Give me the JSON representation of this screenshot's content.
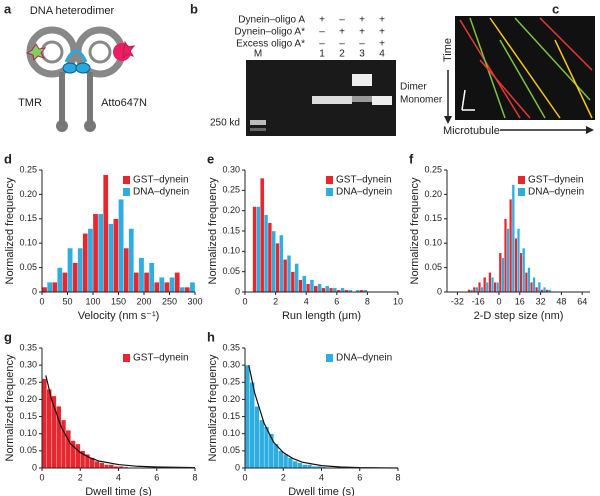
{
  "figure": {
    "a": {
      "letter": "a",
      "title": "DNA heterodimer",
      "left_label": "TMR",
      "right_label": "Atto647N"
    },
    "b": {
      "letter": "b",
      "rows": [
        {
          "label": "Dynein–oligo A",
          "marks": [
            "+",
            "–",
            "+",
            "+"
          ]
        },
        {
          "label": "Dynein–oligo A*",
          "marks": [
            "–",
            "+",
            "+",
            "+"
          ]
        },
        {
          "label": "Excess oligo A*",
          "marks": [
            "–",
            "–",
            "–",
            "+"
          ]
        }
      ],
      "lanes": [
        "M",
        "1",
        "2",
        "3",
        "4"
      ],
      "marker": "250 kd",
      "dimer": "Dimer",
      "monomer": "Monomer"
    },
    "c": {
      "letter": "c",
      "y_label": "Time",
      "x_label": "Microtubule"
    }
  },
  "chart_data": [
    {
      "type": "histogram",
      "panel": "d",
      "xlabel": "Velocity (nm s⁻¹)",
      "ylabel": "Normalized frequency",
      "bins": [
        0,
        20,
        40,
        60,
        80,
        100,
        120,
        140,
        160,
        180,
        200,
        220,
        240,
        260,
        280,
        300
      ],
      "series": [
        {
          "name": "GST–dynein",
          "color": "#e8262d",
          "values": [
            0.01,
            0.02,
            0.04,
            0.06,
            0.12,
            0.16,
            0.24,
            0.15,
            0.09,
            0.04,
            0.04,
            0.02,
            0.02,
            0.04,
            0.01
          ]
        },
        {
          "name": "DNA–dynein",
          "color": "#2eaee0",
          "values": [
            0.02,
            0.05,
            0.09,
            0.09,
            0.13,
            0.16,
            0.14,
            0.19,
            0.13,
            0.07,
            0.06,
            0.03,
            0.03,
            0.01,
            0.02
          ]
        }
      ],
      "xlim": [
        0,
        300
      ],
      "xticks": [
        0,
        50,
        100,
        150,
        200,
        250,
        300
      ],
      "ylim": [
        0,
        0.25
      ],
      "yticks": [
        0,
        0.05,
        {
          "value": 0.1,
          "label": "0.10"
        },
        0.15,
        {
          "value": 0.2,
          "label": "0.20"
        },
        0.25
      ],
      "legend": "upper right"
    },
    {
      "type": "histogram",
      "panel": "e",
      "xlabel": "Run length (μm)",
      "ylabel": "Normalized frequency",
      "bins": [
        0.5,
        1,
        1.5,
        2,
        2.5,
        3,
        3.5,
        4,
        4.5,
        5,
        5.5,
        6,
        6.5,
        7,
        7.5,
        8
      ],
      "series": [
        {
          "name": "GST–dynein",
          "color": "#e8262d",
          "values": [
            0.21,
            0.28,
            0.17,
            0.12,
            0.08,
            0.05,
            0.03,
            0.02,
            0.015,
            0.01,
            0.01,
            0.005,
            0.005,
            0,
            0.005
          ]
        },
        {
          "name": "DNA–dynein",
          "color": "#2eaee0",
          "values": [
            0.21,
            0.19,
            0.15,
            0.14,
            0.09,
            0.07,
            0.04,
            0.03,
            0.02,
            0.015,
            0.01,
            0.01,
            0.005,
            0.005,
            0.005
          ]
        }
      ],
      "xlim": [
        0,
        10
      ],
      "xticks": [
        0,
        2,
        4,
        6,
        8,
        10
      ],
      "ylim": [
        0,
        0.3
      ],
      "yticks": [
        0,
        0.05,
        {
          "value": 0.1,
          "label": "0.10"
        },
        0.15,
        {
          "value": 0.2,
          "label": "0.20"
        },
        0.25,
        {
          "value": 0.3,
          "label": "0.30"
        }
      ],
      "legend": "upper right"
    },
    {
      "type": "histogram",
      "panel": "f",
      "xlabel": "2-D step size (nm)",
      "ylabel": "Normalized frequency",
      "bins": [
        -24,
        -20,
        -16,
        -12,
        -8,
        -4,
        0,
        4,
        8,
        12,
        16,
        20,
        24,
        28,
        32,
        36,
        40
      ],
      "series": [
        {
          "name": "GST–dynein",
          "color": "#e8262d",
          "values": [
            0.005,
            0.01,
            0.02,
            0.03,
            0.04,
            0.02,
            0.08,
            0.15,
            0.19,
            0.11,
            0.08,
            0.04,
            0.02,
            0.01,
            0.005,
            0.005
          ]
        },
        {
          "name": "DNA–dynein",
          "color": "#2eaee0",
          "values": [
            0.005,
            0.01,
            0.01,
            0.02,
            0.03,
            0.02,
            0.07,
            0.13,
            0.22,
            0.13,
            0.09,
            0.05,
            0.03,
            0.02,
            0.01,
            0.005
          ]
        }
      ],
      "xlim": [
        -40,
        70
      ],
      "xticks": [
        -32,
        -16,
        0,
        16,
        32,
        48,
        64
      ],
      "ylim": [
        0,
        0.25
      ],
      "yticks": [
        0,
        0.05,
        {
          "value": 0.1,
          "label": "0.10"
        },
        0.15,
        {
          "value": 0.2,
          "label": "0.20"
        },
        0.25
      ],
      "legend": "upper right"
    },
    {
      "type": "histogram",
      "panel": "g",
      "xlabel": "Dwell time (s)",
      "ylabel": "Normalized frequency",
      "bins": [
        0,
        0.25,
        0.5,
        0.75,
        1,
        1.25,
        1.5,
        1.75,
        2,
        2.25,
        2.5,
        2.75,
        3,
        3.25,
        3.5,
        3.75,
        4,
        4.25,
        4.5
      ],
      "series": [
        {
          "name": "GST–dynein",
          "color": "#e8262d",
          "values": [
            0.26,
            0.23,
            0.21,
            0.18,
            0.14,
            0.11,
            0.08,
            0.07,
            0.05,
            0.04,
            0.03,
            0.02,
            0.015,
            0.01,
            0.01,
            0.005,
            0.005,
            0.003
          ]
        }
      ],
      "fit": {
        "x": [
          0.2,
          0.5,
          1,
          1.5,
          2,
          2.5,
          3,
          4,
          5,
          6,
          8
        ],
        "values": [
          0.27,
          0.2,
          0.12,
          0.07,
          0.045,
          0.03,
          0.02,
          0.01,
          0.005,
          0.003,
          0.001
        ]
      },
      "xlim": [
        0,
        8
      ],
      "xticks": [
        0,
        2,
        4,
        6,
        8
      ],
      "ylim": [
        0,
        0.35
      ],
      "yticks": [
        0,
        0.05,
        {
          "value": 0.1,
          "label": "0.10"
        },
        0.15,
        {
          "value": 0.2,
          "label": "0.20"
        },
        0.25,
        {
          "value": 0.3,
          "label": "0.30"
        },
        0.35
      ],
      "legend": "upper right"
    },
    {
      "type": "histogram",
      "panel": "h",
      "xlabel": "Dwell time (s)",
      "ylabel": "Normalized frequency",
      "bins": [
        0,
        0.25,
        0.5,
        0.75,
        1,
        1.25,
        1.5,
        1.75,
        2,
        2.25,
        2.5,
        2.75,
        3,
        3.25,
        3.5,
        3.75,
        4,
        4.25,
        4.5
      ],
      "series": [
        {
          "name": "DNA–dynein",
          "color": "#2eaee0",
          "values": [
            0.3,
            0.25,
            0.18,
            0.14,
            0.12,
            0.1,
            0.07,
            0.05,
            0.04,
            0.03,
            0.02,
            0.015,
            0.01,
            0.01,
            0.005,
            0.005,
            0.003,
            0.002
          ]
        }
      ],
      "fit": {
        "x": [
          0.2,
          0.5,
          1,
          1.5,
          2,
          2.5,
          3,
          4,
          5,
          6,
          8
        ],
        "values": [
          0.3,
          0.22,
          0.13,
          0.075,
          0.045,
          0.028,
          0.017,
          0.007,
          0.003,
          0.001,
          0
        ]
      },
      "xlim": [
        0,
        8
      ],
      "xticks": [
        0,
        2,
        4,
        6,
        8
      ],
      "ylim": [
        0,
        0.35
      ],
      "yticks": [
        0,
        0.05,
        {
          "value": 0.1,
          "label": "0.10"
        },
        0.15,
        {
          "value": 0.2,
          "label": "0.20"
        },
        0.25,
        {
          "value": 0.3,
          "label": "0.30"
        },
        0.35
      ],
      "legend": "upper right"
    }
  ]
}
